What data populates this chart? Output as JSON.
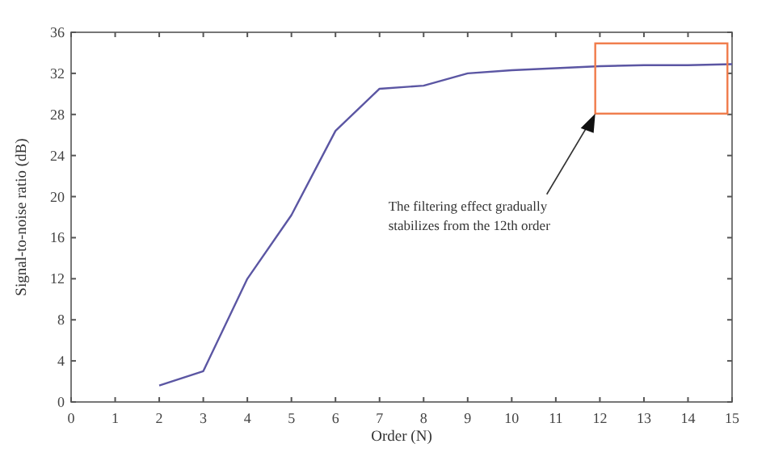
{
  "chart_data": {
    "type": "line",
    "xlabel": "Order (N)",
    "ylabel": "Signal-to-noise ratio (dB)",
    "x": [
      2,
      3,
      4,
      5,
      6,
      7,
      8,
      9,
      10,
      11,
      12,
      13,
      14,
      15
    ],
    "series": [
      {
        "color": "#5b56a3",
        "values": [
          1.6,
          3.0,
          12,
          18.2,
          26.4,
          30.5,
          30.8,
          32,
          32.3,
          32.5,
          32.7,
          32.8,
          32.8,
          32.9
        ]
      }
    ],
    "xlim": [
      0,
      15
    ],
    "xticks": [
      0,
      1,
      2,
      3,
      4,
      5,
      6,
      7,
      8,
      9,
      10,
      11,
      12,
      13,
      14,
      15
    ],
    "ylim": [
      0,
      36
    ],
    "yticks": [
      0,
      4,
      8,
      12,
      16,
      20,
      24,
      28,
      32,
      36
    ],
    "annotations": [
      "The filtering effect gradually\nstabilizes from the 12th order"
    ],
    "grid": false,
    "marker": "none",
    "line_style": "solid"
  }
}
